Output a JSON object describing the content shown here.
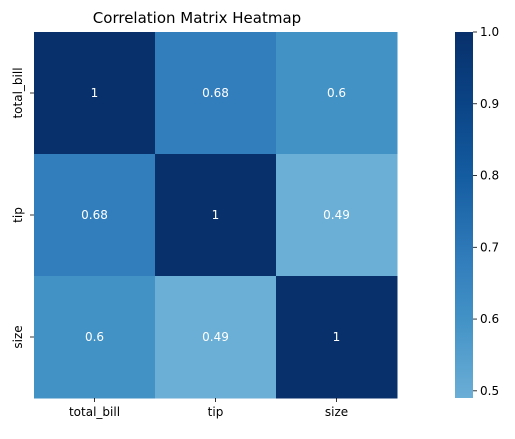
{
  "chart_data": {
    "type": "heatmap",
    "title": "Correlation Matrix Heatmap",
    "xlabel": "",
    "ylabel": "",
    "x_categories": [
      "total_bill",
      "tip",
      "size"
    ],
    "y_categories": [
      "total_bill",
      "tip",
      "size"
    ],
    "values": [
      [
        1,
        0.68,
        0.6
      ],
      [
        0.68,
        1,
        0.49
      ],
      [
        0.6,
        0.49,
        1
      ]
    ],
    "annotations": [
      [
        "1",
        "0.68",
        "0.6"
      ],
      [
        "0.68",
        "1",
        "0.49"
      ],
      [
        "0.6",
        "0.49",
        "1"
      ]
    ],
    "colorbar": {
      "range": [
        0.49,
        1.0
      ],
      "ticks": [
        0.5,
        0.6,
        0.7,
        0.8,
        0.9,
        1.0
      ],
      "tick_labels": [
        "0.5",
        "0.6",
        "0.7",
        "0.8",
        "0.9",
        "1.0"
      ],
      "colormap": "Blues (centered)"
    },
    "grid": false,
    "legend": "colorbar right"
  }
}
